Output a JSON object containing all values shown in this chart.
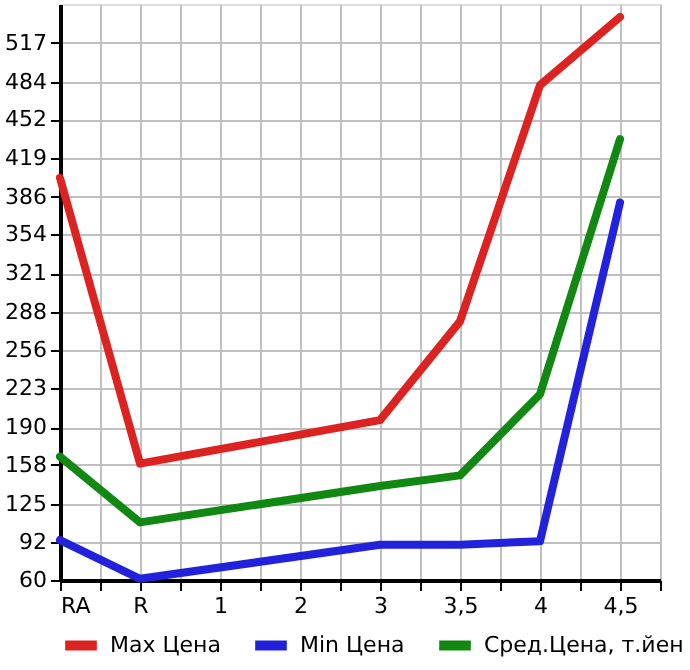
{
  "chart_data": {
    "type": "line",
    "categories": [
      "RA",
      "R",
      "1",
      "2",
      "3",
      "3,5",
      "4",
      "4,5"
    ],
    "series": [
      {
        "name": "Max Цена",
        "color": "#dd2222",
        "values": [
          402,
          159,
          null,
          null,
          196,
          280,
          481,
          539
        ]
      },
      {
        "name": "Min Цена",
        "color": "#2222dd",
        "values": [
          94,
          61,
          null,
          null,
          90,
          90,
          93,
          381
        ]
      },
      {
        "name": "Сред.Цена, т.йен",
        "color": "#118811",
        "values": [
          165,
          109,
          null,
          null,
          140,
          149,
          218,
          435
        ]
      }
    ],
    "ylim": [
      60,
      550
    ],
    "yticks": [
      60,
      92,
      125,
      158,
      190,
      223,
      256,
      288,
      321,
      354,
      386,
      419,
      452,
      484,
      517
    ],
    "grid": true,
    "legend": "bottom",
    "marker": "none",
    "line_style": "solid"
  }
}
